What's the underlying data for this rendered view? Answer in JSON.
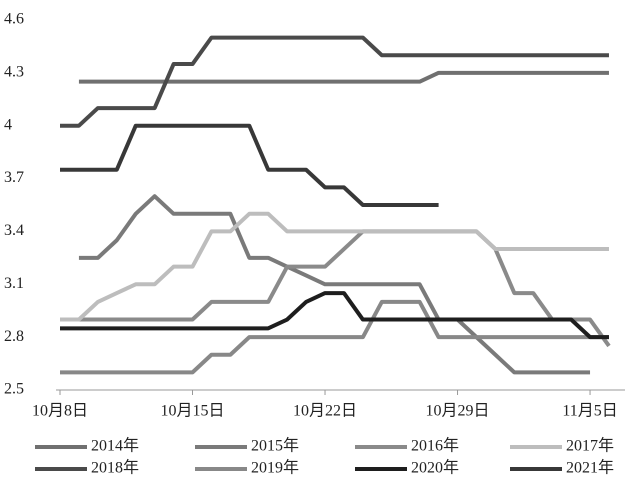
{
  "chart_data": {
    "type": "line",
    "categories": [
      "10月8日",
      null,
      null,
      null,
      null,
      null,
      null,
      "10月15日",
      null,
      null,
      null,
      null,
      null,
      null,
      "10月22日",
      null,
      null,
      null,
      null,
      null,
      null,
      "10月29日",
      null,
      null,
      null,
      null,
      null,
      null,
      "11月5日",
      null
    ],
    "ylim": [
      2.5,
      4.6
    ],
    "yticks": [
      2.5,
      2.8,
      3.1,
      3.4,
      3.7,
      4,
      4.3,
      4.6
    ],
    "series": [
      {
        "name": "2014年",
        "color": "#707070",
        "values": [
          null,
          4.25,
          4.25,
          4.25,
          4.25,
          4.25,
          4.25,
          4.25,
          4.25,
          4.25,
          4.25,
          4.25,
          4.25,
          4.25,
          4.25,
          4.25,
          4.25,
          4.25,
          4.25,
          4.25,
          4.3,
          4.3,
          4.3,
          4.3,
          4.3,
          4.3,
          4.3,
          4.3,
          4.3,
          4.3
        ]
      },
      {
        "name": "2015年",
        "color": "#7a7a7a",
        "values": [
          null,
          3.25,
          3.25,
          3.35,
          3.5,
          3.6,
          3.5,
          3.5,
          3.5,
          3.5,
          3.25,
          3.25,
          3.2,
          3.15,
          3.1,
          3.1,
          3.1,
          3.1,
          3.1,
          3.1,
          2.9,
          2.9,
          2.8,
          2.7,
          2.6,
          2.6,
          2.6,
          2.6,
          2.6,
          null
        ]
      },
      {
        "name": "2016年",
        "color": "#8a8a8a",
        "values": [
          2.9,
          2.9,
          2.9,
          2.9,
          2.9,
          2.9,
          2.9,
          2.9,
          3.0,
          3.0,
          3.0,
          3.0,
          3.2,
          3.2,
          3.2,
          3.3,
          3.4,
          3.4,
          3.4,
          3.4,
          3.4,
          3.4,
          3.4,
          3.3,
          3.05,
          3.05,
          2.9,
          2.9,
          2.9,
          2.75
        ]
      },
      {
        "name": "2017年",
        "color": "#bdbdbd",
        "values": [
          2.9,
          2.9,
          3.0,
          3.05,
          3.1,
          3.1,
          3.2,
          3.2,
          3.4,
          3.4,
          3.5,
          3.5,
          3.4,
          3.4,
          3.4,
          3.4,
          3.4,
          3.4,
          3.4,
          3.4,
          3.4,
          3.4,
          3.4,
          3.3,
          3.3,
          3.3,
          3.3,
          3.3,
          3.3,
          3.3
        ]
      },
      {
        "name": "2018年",
        "color": "#4a4a4a",
        "values": [
          4.0,
          4.0,
          4.1,
          4.1,
          4.1,
          4.1,
          4.35,
          4.35,
          4.5,
          4.5,
          4.5,
          4.5,
          4.5,
          4.5,
          4.5,
          4.5,
          4.5,
          4.4,
          4.4,
          4.4,
          4.4,
          4.4,
          4.4,
          4.4,
          4.4,
          4.4,
          4.4,
          4.4,
          4.4,
          4.4
        ]
      },
      {
        "name": "2019年",
        "color": "#888888",
        "values": [
          2.6,
          2.6,
          2.6,
          2.6,
          2.6,
          2.6,
          2.6,
          2.6,
          2.7,
          2.7,
          2.8,
          2.8,
          2.8,
          2.8,
          2.8,
          2.8,
          2.8,
          3.0,
          3.0,
          3.0,
          2.8,
          2.8,
          2.8,
          2.8,
          2.8,
          2.8,
          2.8,
          2.8,
          2.8,
          2.8
        ]
      },
      {
        "name": "2020年",
        "color": "#1e1e1e",
        "values": [
          2.85,
          2.85,
          2.85,
          2.85,
          2.85,
          2.85,
          2.85,
          2.85,
          2.85,
          2.85,
          2.85,
          2.85,
          2.9,
          3.0,
          3.05,
          3.05,
          2.9,
          2.9,
          2.9,
          2.9,
          2.9,
          2.9,
          2.9,
          2.9,
          2.9,
          2.9,
          2.9,
          2.9,
          2.8,
          2.8
        ]
      },
      {
        "name": "2021年",
        "color": "#383838",
        "values": [
          3.75,
          3.75,
          3.75,
          3.75,
          4.0,
          4.0,
          4.0,
          4.0,
          4.0,
          4.0,
          4.0,
          3.75,
          3.75,
          3.75,
          3.65,
          3.65,
          3.55,
          3.55,
          3.55,
          3.55,
          3.55,
          null,
          null,
          null,
          null,
          null,
          null,
          null,
          null,
          null
        ]
      }
    ]
  }
}
